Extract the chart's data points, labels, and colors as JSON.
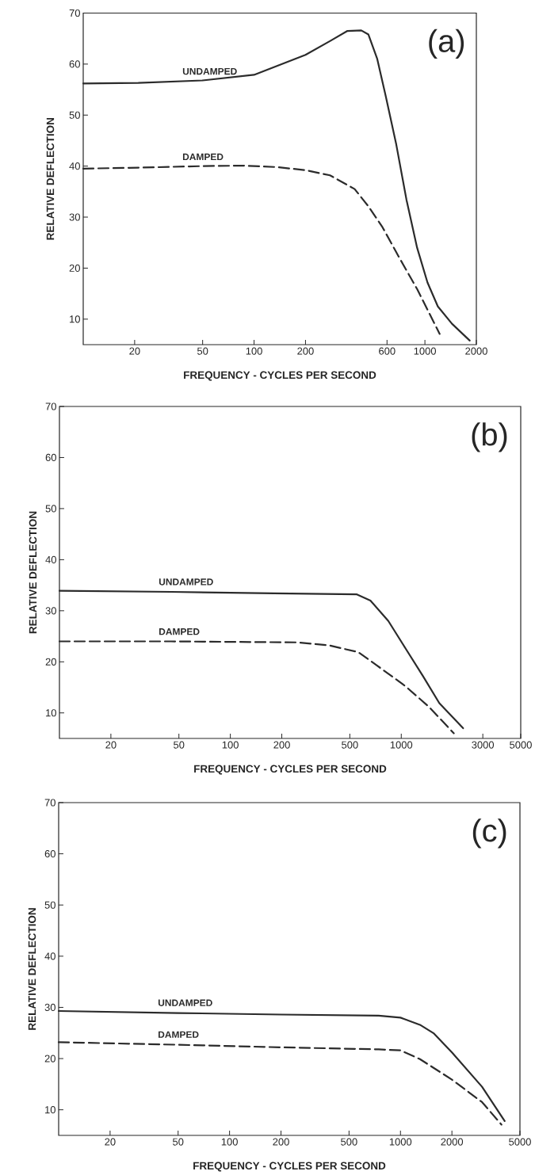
{
  "chart_data": [
    {
      "type": "line",
      "xlabel": "FREQUENCY - CYCLES PER SECOND",
      "ylabel": "RELATIVE DEFLECTION",
      "annotations": [
        "(a)"
      ],
      "log": "x",
      "xlim": [
        10,
        2000
      ],
      "ylim": [
        5,
        70
      ],
      "xticks": [
        20,
        50,
        100,
        200,
        600,
        1000,
        2000
      ],
      "yticks": [
        10,
        20,
        30,
        40,
        50,
        60,
        70
      ],
      "series": [
        {
          "name": "UNDAMPED",
          "color": "#2b2b2b",
          "line_style": "solid",
          "x": [
            10,
            21,
            50,
            100,
            200,
            278,
            352,
            424,
            467,
            525,
            590,
            680,
            780,
            900,
            1035,
            1190,
            1440,
            1830
          ],
          "values": [
            56.2,
            56.3,
            56.8,
            57.9,
            61.8,
            64.5,
            66.5,
            66.6,
            65.8,
            61.1,
            53.7,
            44.2,
            33.4,
            24.0,
            17.2,
            12.5,
            9.1,
            5.8
          ]
        },
        {
          "name": "DAMPED",
          "color": "#2b2b2b",
          "line_style": "dashed",
          "x": [
            10,
            21,
            50,
            86,
            137,
            200,
            278,
            388,
            467,
            565,
            712,
            900,
            1220
          ],
          "values": [
            39.5,
            39.7,
            40.0,
            40.1,
            39.8,
            39.2,
            38.2,
            35.5,
            32.1,
            28.0,
            21.9,
            15.9,
            7.1
          ]
        }
      ]
    },
    {
      "type": "line",
      "xlabel": "FREQUENCY - CYCLES PER SECOND",
      "ylabel": "RELATIVE DEFLECTION",
      "annotations": [
        "(b)"
      ],
      "log": "x",
      "xlim": [
        10,
        5000
      ],
      "ylim": [
        5,
        70
      ],
      "xticks": [
        20,
        50,
        100,
        200,
        500,
        1000,
        3000,
        5000
      ],
      "yticks": [
        10,
        20,
        30,
        40,
        50,
        60,
        70
      ],
      "series": [
        {
          "name": "UNDAMPED",
          "color": "#2b2b2b",
          "line_style": "solid",
          "x": [
            10,
            45,
            180,
            550,
            660,
            840,
            1060,
            1340,
            1670,
            2300
          ],
          "values": [
            33.9,
            33.7,
            33.4,
            33.2,
            32.0,
            28.0,
            22.6,
            17.2,
            11.9,
            7.0
          ]
        },
        {
          "name": "DAMPED",
          "color": "#2b2b2b",
          "line_style": "dashed",
          "x": [
            10,
            45,
            250,
            380,
            560,
            720,
            1060,
            1450,
            2030
          ],
          "values": [
            24.0,
            24.0,
            23.8,
            23.2,
            21.9,
            19.3,
            15.2,
            11.2,
            6.0
          ]
        }
      ]
    },
    {
      "type": "line",
      "xlabel": "FREQUENCY - CYCLES PER SECOND",
      "ylabel": "RELATIVE DEFLECTION",
      "annotations": [
        "(c)"
      ],
      "log": "x",
      "xlim": [
        10,
        5000
      ],
      "ylim": [
        5,
        70
      ],
      "xticks": [
        20,
        50,
        100,
        200,
        500,
        1000,
        2000,
        5000
      ],
      "yticks": [
        10,
        20,
        30,
        40,
        50,
        60,
        70
      ],
      "series": [
        {
          "name": "UNDAMPED",
          "color": "#2b2b2b",
          "line_style": "solid",
          "x": [
            10,
            50,
            200,
            745,
            1000,
            1300,
            1570,
            2000,
            3000,
            4070
          ],
          "values": [
            29.3,
            28.9,
            28.6,
            28.4,
            28.0,
            26.6,
            24.9,
            21.2,
            14.5,
            7.8
          ]
        },
        {
          "name": "DAMPED",
          "color": "#2b2b2b",
          "line_style": "dashed",
          "x": [
            10,
            50,
            200,
            745,
            1000,
            1300,
            2000,
            3000,
            3900
          ],
          "values": [
            23.2,
            22.7,
            22.2,
            21.8,
            21.6,
            19.9,
            15.9,
            11.5,
            7.1
          ]
        }
      ]
    }
  ]
}
